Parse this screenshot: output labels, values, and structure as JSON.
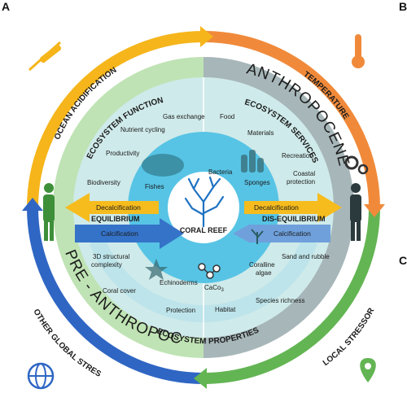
{
  "panel_labels": {
    "a": "A",
    "b": "B",
    "c": "C"
  },
  "stressors": {
    "ocean_acidification": "OCEAN ACIDIFICATION",
    "temperature": "TEMPERATURE",
    "local": "LOCAL STRESSORS",
    "global": "OTHER GLOBAL STRESSORS"
  },
  "eras": {
    "anthropocene": "ANTHROPOCENE",
    "pre_anthropocene": "PRE - ANTHROPOCENE"
  },
  "sections": {
    "functions": "ECOSYSTEM FUNCTIONS",
    "services": "ECOSYSTEM SERVICES",
    "properties": "ECOSYSTEM PROPERTIES"
  },
  "functions_items": {
    "gas_exchange": "Gas exchange",
    "nutrient_cycling": "Nutrient cycling",
    "productivity": "Productivity",
    "biodiversity": "Biodiversity"
  },
  "services_items": {
    "food": "Food",
    "materials": "Materials",
    "recreation": "Recreation",
    "coastal_protection_1": "Coastal",
    "coastal_protection_2": "protection"
  },
  "properties_items": {
    "structural_1": "3D structural",
    "structural_2": "complexity",
    "coral_cover": "Coral cover",
    "echinoderms": "Echinoderms",
    "caco3": "CaCo",
    "caco3_sub": "3",
    "coralline_1": "Coralline",
    "coralline_2": "algae",
    "sand": "Sand and rubble",
    "species_richness": "Species richness",
    "protection": "Protection",
    "habitat": "Habitat"
  },
  "inner_items": {
    "fishes": "Fishes",
    "bacteria": "Bacteria",
    "sponges": "Sponges"
  },
  "center": "CORAL REEF",
  "arrows": {
    "decalcification_left": "Decalcification",
    "decalcification_right": "Decalcification",
    "calcification_left": "Calcification",
    "calcification_right": "Calcification",
    "equilibrium": "EQUILIBRIUM",
    "dis_equilibrium": "DIS-EQUILIBRIUM"
  },
  "colors": {
    "ring_yellow": "#f5b51b",
    "ring_orange": "#f08a3a",
    "ring_green": "#63b553",
    "ring_blue": "#2f66c4",
    "pre_anthropocene_green": "#bfe3b4",
    "anthropocene_gray": "#a7b6b9",
    "functions_teal": "#cfeaea",
    "core_blue": "#57c4e5",
    "arrow_yellow": "#f6bc1e",
    "arrow_blue": "#3573c9",
    "arrow_blue_light": "#6fa0dc"
  }
}
